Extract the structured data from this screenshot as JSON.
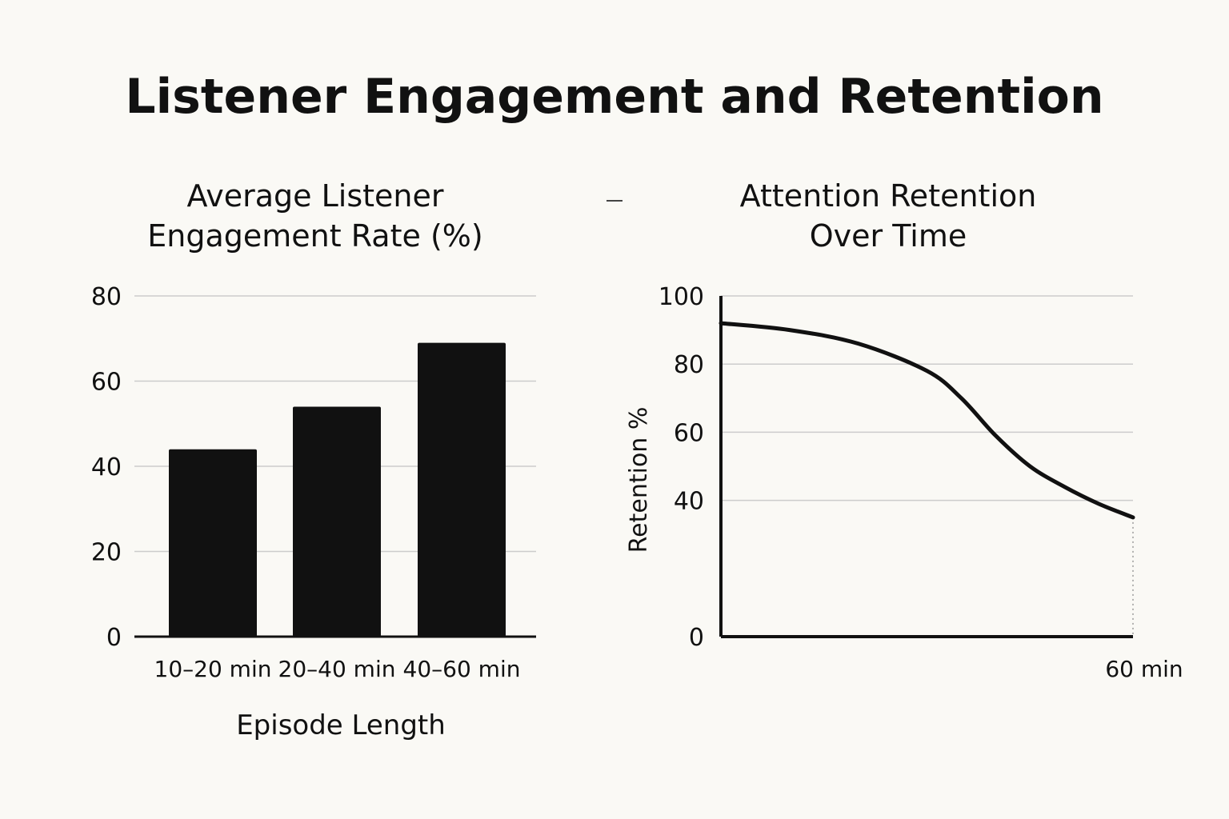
{
  "title": "Listener Engagement and Retention",
  "chart_data": [
    {
      "type": "bar",
      "title": "Average Listener Engagement Rate (%)",
      "title_lines": [
        "Average Listener",
        "Engagement Rate (%)"
      ],
      "categories": [
        "10–20 min",
        "20–40 min",
        "40–60 min"
      ],
      "values": [
        44,
        54,
        69
      ],
      "xlabel": "Episode Length",
      "ylabel": "",
      "ylim": [
        0,
        80
      ],
      "yticks": [
        0,
        20,
        40,
        60,
        80
      ],
      "grid": true,
      "bar_color": "#111111",
      "grid_color": "#cccccc"
    },
    {
      "type": "line",
      "title": "Attention Retention Over Time",
      "title_lines": [
        "Attention Retention",
        "Over Time"
      ],
      "x": [
        0,
        10,
        20,
        30,
        35,
        40,
        45,
        50,
        55,
        60
      ],
      "values": [
        92,
        90,
        86,
        78,
        70,
        59,
        50,
        44,
        39,
        35
      ],
      "xlabel": "",
      "ylabel": "Retention %",
      "xtick_label": "60 min",
      "xlim": [
        0,
        60
      ],
      "ylim": [
        0,
        100
      ],
      "yticks": [
        0,
        40,
        60,
        80,
        100
      ],
      "grid": true,
      "line_color": "#111111",
      "grid_color": "#cccccc"
    }
  ]
}
